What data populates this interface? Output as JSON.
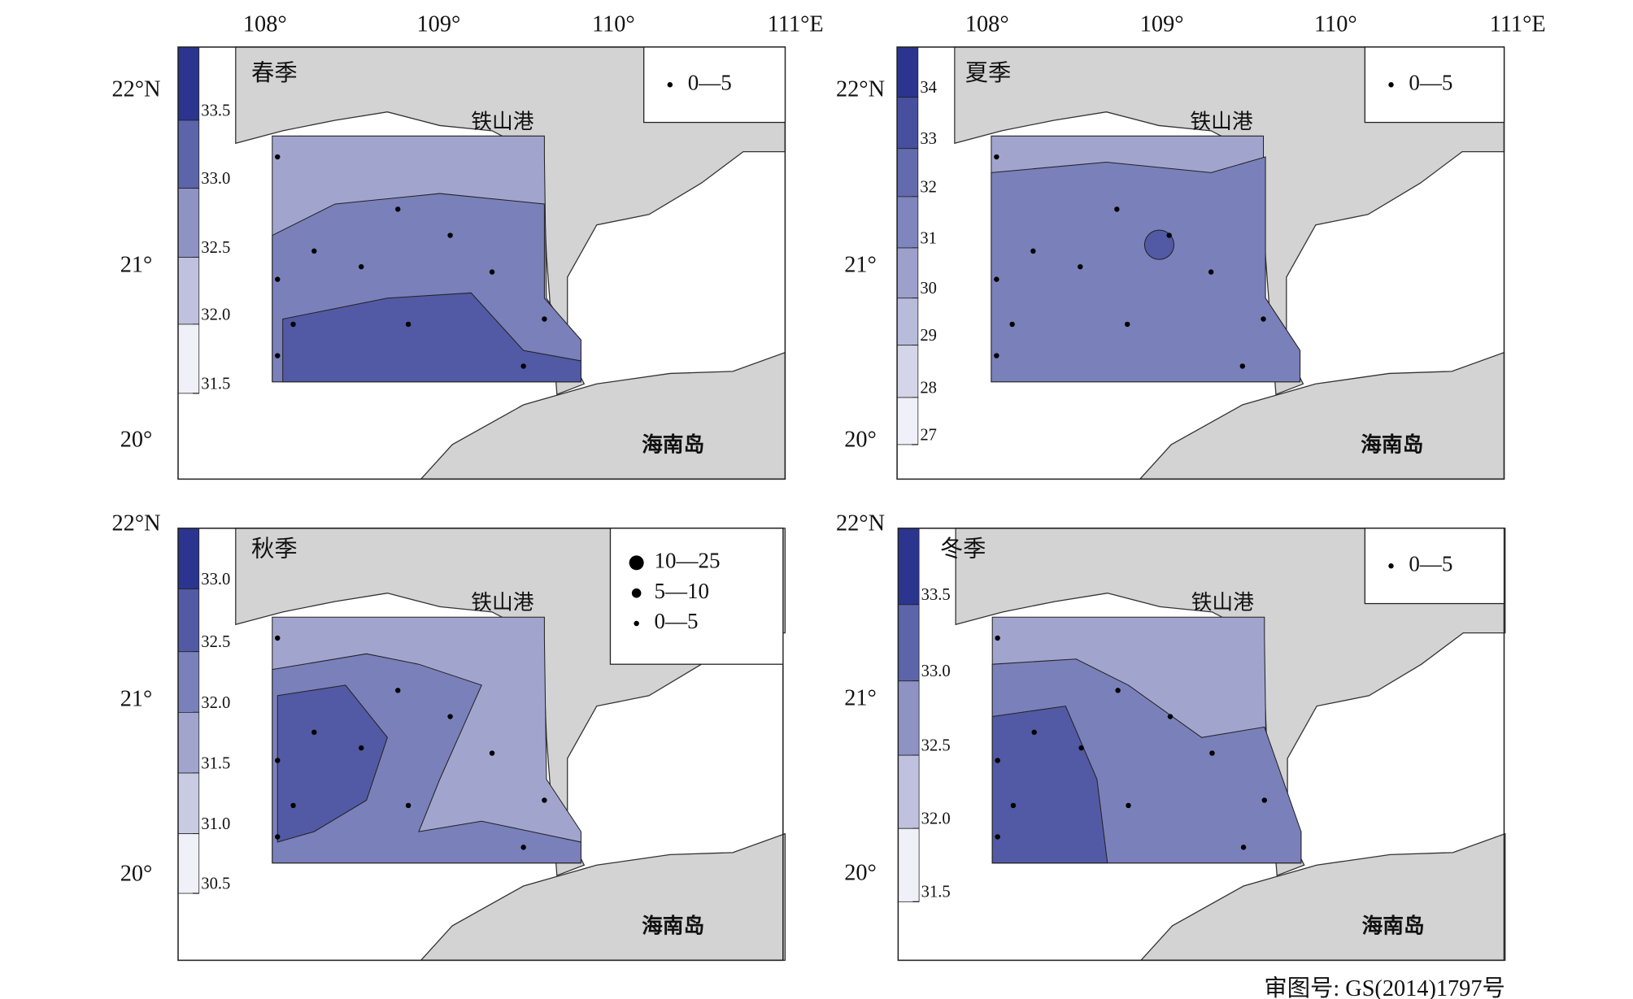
{
  "axes": {
    "top_labels": [
      "108°",
      "109°",
      "110°",
      "111°E"
    ],
    "left_labels": [
      "22°N",
      "21°",
      "20°"
    ]
  },
  "panels": [
    {
      "title": "春季",
      "colorbar": [
        "33.5",
        "33.0",
        "32.5",
        "32.0",
        "31.5"
      ],
      "legend": [
        "0—5"
      ],
      "place_labels": [
        "铁山港",
        "海南岛"
      ]
    },
    {
      "title": "夏季",
      "colorbar": [
        "34",
        "33",
        "32",
        "31",
        "30",
        "29",
        "28",
        "27"
      ],
      "legend": [
        "0—5"
      ],
      "place_labels": [
        "铁山港",
        "海南岛"
      ]
    },
    {
      "title": "秋季",
      "colorbar": [
        "33.0",
        "32.5",
        "32.0",
        "31.5",
        "31.0",
        "30.5"
      ],
      "legend": [
        "10—25",
        "5—10",
        "0—5"
      ],
      "place_labels": [
        "铁山港",
        "海南岛"
      ]
    },
    {
      "title": "冬季",
      "colorbar": [
        "33.5",
        "33.0",
        "32.5",
        "32.0",
        "31.5"
      ],
      "legend": [
        "0—5"
      ],
      "place_labels": [
        "铁山港",
        "海南岛"
      ]
    }
  ],
  "footer": "审图号: GS(2014)1797号"
}
